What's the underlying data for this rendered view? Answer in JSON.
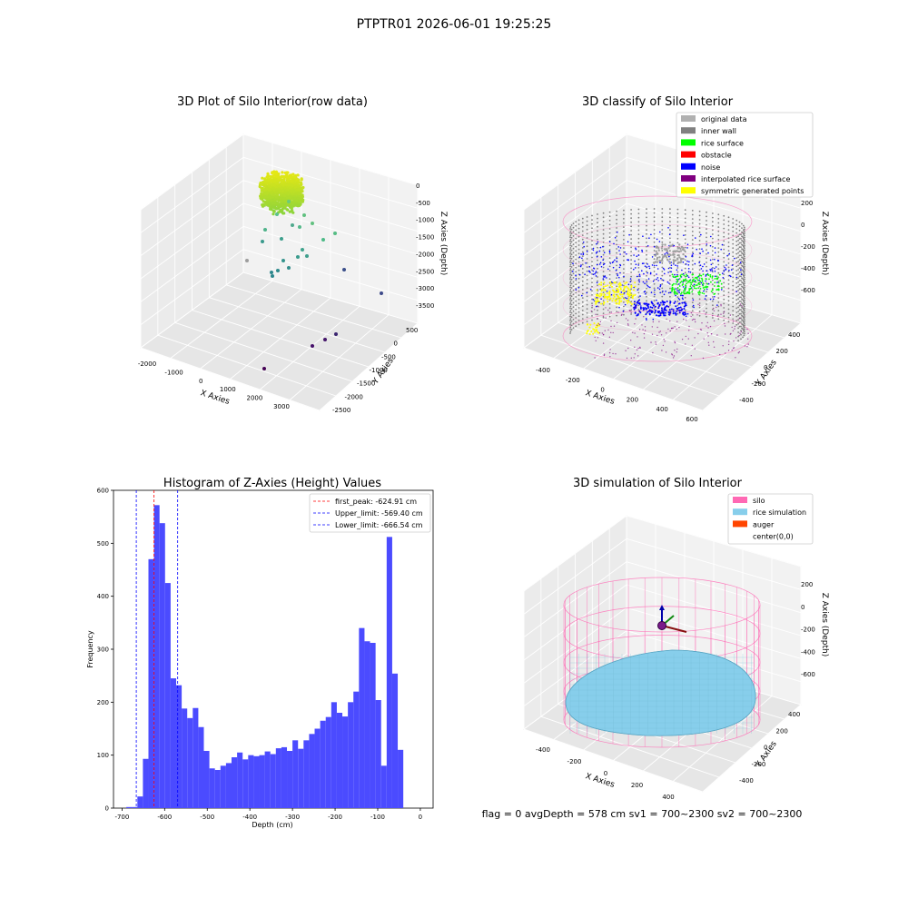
{
  "page_title": "PTPTR01 2026-06-01 19:25:25",
  "status_line": "flag = 0     avgDepth = 578 cm  sv1 = 700~2300  sv2 = 700~2300",
  "colors": {
    "original": "#b0b0b0",
    "inner_wall": "#808080",
    "rice_surface": "#00ff00",
    "obstacle": "#ff0000",
    "noise": "#0000ff",
    "interpolated": "#800080",
    "symmetric": "#ffff00",
    "silo": "#ff69b4",
    "rice_sim": "#87ceeb",
    "auger": "#ff4500",
    "hist_bar": "#4b4bff"
  },
  "chart_data": [
    {
      "type": "scatter",
      "title": "3D Plot of Silo Interior(row data)",
      "xlabel": "X Axies",
      "ylabel": "Y Axies",
      "zlabel": "Z Axies (Depth)",
      "x_ticks": [
        "-2000",
        "-1000",
        "0",
        "1000",
        "2000",
        "3000"
      ],
      "y_ticks": [
        "500",
        "0",
        "-500",
        "-1000",
        "-1500",
        "-2000",
        "-2500"
      ],
      "z_ticks": [
        "0",
        "-500",
        "-1000",
        "-1500",
        "-2000",
        "-2500",
        "-3000",
        "-3500"
      ]
    },
    {
      "type": "scatter",
      "title": "3D classify of Silo Interior",
      "xlabel": "X Axies",
      "ylabel": "Y Axies",
      "zlabel": "Z Axies (Depth)",
      "x_ticks": [
        "-400",
        "-200",
        "0",
        "200",
        "400",
        "600"
      ],
      "y_ticks": [
        "400",
        "200",
        "0",
        "-200",
        "-400"
      ],
      "z_ticks": [
        "200",
        "0",
        "-200",
        "-400",
        "-600"
      ],
      "legend": [
        "original data",
        "inner wall",
        "rice surface",
        "obstacle",
        "noise",
        "interpolated rice surface",
        "symmetric generated points"
      ],
      "legend_placement": "top-right"
    },
    {
      "type": "bar",
      "title": "Histogram of Z-Axies (Height) Values",
      "xlabel": "Depth (cm)",
      "ylabel": "Frequency",
      "xlim": [
        -720,
        30
      ],
      "ylim": [
        0,
        600
      ],
      "x_ticks": [
        -700,
        -600,
        -500,
        -400,
        -300,
        -200,
        -100,
        0
      ],
      "y_ticks": [
        0,
        100,
        200,
        300,
        400,
        500,
        600
      ],
      "bin_start": -690,
      "bin_width": 13,
      "values": [
        2,
        2,
        22,
        93,
        470,
        572,
        538,
        425,
        245,
        232,
        188,
        170,
        189,
        153,
        108,
        75,
        72,
        80,
        85,
        96,
        105,
        92,
        100,
        98,
        100,
        107,
        102,
        113,
        115,
        108,
        128,
        112,
        128,
        140,
        150,
        165,
        172,
        200,
        180,
        173,
        200,
        220,
        340,
        315,
        312,
        204,
        80,
        512,
        254,
        110
      ],
      "lines": [
        {
          "label": "first_peak: -624.91 cm",
          "value": -624.91,
          "color": "#ff0000"
        },
        {
          "label": "Upper_limit: -569.40 cm",
          "value": -569.4,
          "color": "#0000ff"
        },
        {
          "label": "Lower_limit: -666.54 cm",
          "value": -666.54,
          "color": "#0000ff"
        }
      ],
      "legend_placement": "top-right"
    },
    {
      "type": "scatter",
      "title": "3D simulation of Silo Interior",
      "xlabel": "X Axies",
      "ylabel": "Y Axies",
      "zlabel": "Z Axies (Depth)",
      "x_ticks": [
        "-400",
        "-200",
        "0",
        "200",
        "400"
      ],
      "y_ticks": [
        "400",
        "200",
        "0",
        "-200",
        "-400"
      ],
      "z_ticks": [
        "200",
        "0",
        "-200",
        "-400",
        "-600"
      ],
      "legend": [
        "silo",
        "rice simulation",
        "auger",
        "center(0,0)"
      ],
      "legend_placement": "top-right"
    }
  ]
}
